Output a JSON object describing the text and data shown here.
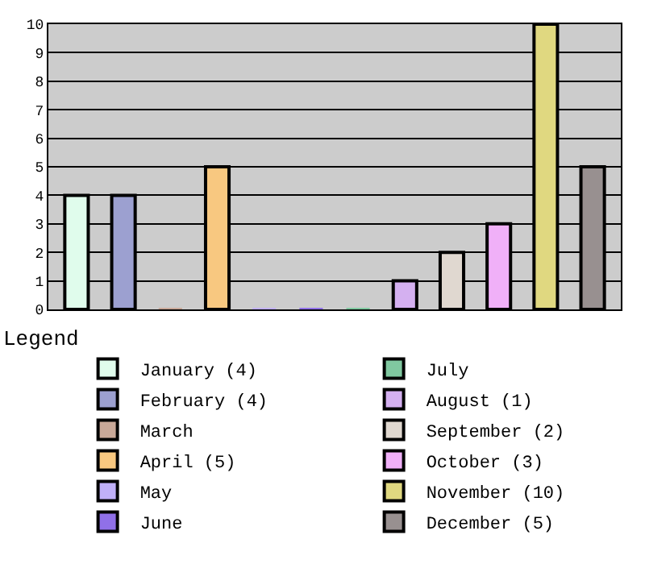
{
  "chart_data": {
    "type": "bar",
    "categories": [
      null,
      null,
      null,
      null,
      null,
      null,
      null,
      null,
      null,
      null,
      null,
      null
    ],
    "legend_title": "Legend",
    "legend": "bottom",
    "grid": "y",
    "ylim": [
      0,
      10
    ],
    "yticks": [
      0,
      1,
      2,
      3,
      4,
      5,
      6,
      7,
      8,
      9,
      10
    ],
    "series": [
      {
        "name": "January (4)",
        "color": "#e0fcec",
        "values": [
          4,
          null,
          null,
          null,
          null,
          null,
          null,
          null,
          null,
          null,
          null,
          null
        ]
      },
      {
        "name": "February (4)",
        "color": "#9ca0d0",
        "values": [
          null,
          4,
          null,
          null,
          null,
          null,
          null,
          null,
          null,
          null,
          null,
          null
        ]
      },
      {
        "name": "March",
        "color": "#c8a898",
        "values": [
          null,
          null,
          0,
          null,
          null,
          null,
          null,
          null,
          null,
          null,
          null,
          null
        ]
      },
      {
        "name": "April (5)",
        "color": "#f8c880",
        "values": [
          null,
          null,
          null,
          5,
          null,
          null,
          null,
          null,
          null,
          null,
          null,
          null
        ]
      },
      {
        "name": "May",
        "color": "#c0b0f8",
        "values": [
          null,
          null,
          null,
          null,
          0,
          null,
          null,
          null,
          null,
          null,
          null,
          null
        ]
      },
      {
        "name": "June",
        "color": "#9070e8",
        "values": [
          null,
          null,
          null,
          null,
          null,
          0,
          null,
          null,
          null,
          null,
          null,
          null
        ]
      },
      {
        "name": "July",
        "color": "#80c8a0",
        "values": [
          null,
          null,
          null,
          null,
          null,
          null,
          0,
          null,
          null,
          null,
          null,
          null
        ]
      },
      {
        "name": "August (1)",
        "color": "#d4b0f0",
        "values": [
          null,
          null,
          null,
          null,
          null,
          null,
          null,
          1,
          null,
          null,
          null,
          null
        ]
      },
      {
        "name": "September (2)",
        "color": "#e0d8d0",
        "values": [
          null,
          null,
          null,
          null,
          null,
          null,
          null,
          null,
          2,
          null,
          null,
          null
        ]
      },
      {
        "name": "October (3)",
        "color": "#f0b0f8",
        "values": [
          null,
          null,
          null,
          null,
          null,
          null,
          null,
          null,
          null,
          3,
          null,
          null
        ]
      },
      {
        "name": "November (10)",
        "color": "#e0d880",
        "values": [
          null,
          null,
          null,
          null,
          null,
          null,
          null,
          null,
          null,
          null,
          10,
          null
        ]
      },
      {
        "name": "December (5)",
        "color": "#989090",
        "values": [
          null,
          null,
          null,
          null,
          null,
          null,
          null,
          null,
          null,
          null,
          null,
          5
        ]
      }
    ]
  }
}
